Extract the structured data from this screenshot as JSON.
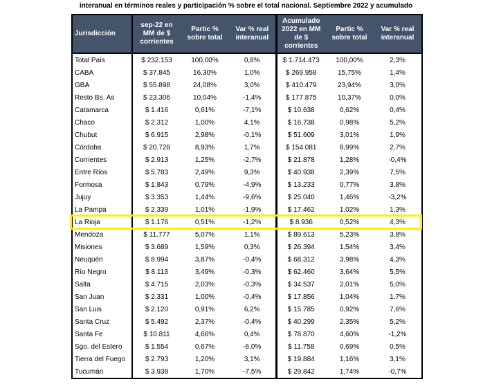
{
  "title": "interanual en términos reales y participación % sobre el total nacional. Septiembre 2022 y acumulado",
  "headers": [
    "Jurisdicción",
    "sep-22 en MM de $ corrientes",
    "Partic % sobre total",
    "Var % real interanual",
    "Acumulado 2022 en MM de $ corrientes",
    "Partic % sobre total",
    "Var % real interanual"
  ],
  "highlight_color": "#ffee00",
  "rows": [
    [
      "Total País",
      "$ 232.153",
      "100,00%",
      "0,8%",
      "$ 1.714.473",
      "100,00%",
      "2,3%"
    ],
    [
      "CABA",
      "$ 37.845",
      "16,30%",
      "1,0%",
      "$ 269.958",
      "15,75%",
      "1,4%"
    ],
    [
      "GBA",
      "$ 55.898",
      "24,08%",
      "3,0%",
      "$ 410.479",
      "23,94%",
      "3,0%"
    ],
    [
      "Resto Bs. As",
      "$ 23.306",
      "10,04%",
      "-1,4%",
      "$ 177.875",
      "10,37%",
      "0,0%"
    ],
    [
      "Catamarca",
      "$ 1.416",
      "0,61%",
      "-7,1%",
      "$ 10.638",
      "0,62%",
      "0,4%"
    ],
    [
      "Chaco",
      "$ 2.312",
      "1,00%",
      "4,1%",
      "$ 16.738",
      "0,98%",
      "5,2%"
    ],
    [
      "Chubut",
      "$ 6.915",
      "2,98%",
      "-0,1%",
      "$ 51.609",
      "3,01%",
      "1,9%"
    ],
    [
      "Córdoba",
      "$ 20.728",
      "8,93%",
      "1,7%",
      "$ 154.081",
      "8,99%",
      "2,7%"
    ],
    [
      "Corrientes",
      "$ 2.913",
      "1,25%",
      "-2,7%",
      "$ 21.878",
      "1,28%",
      "-0,4%"
    ],
    [
      "Entre Ríos",
      "$ 5.783",
      "2,49%",
      "9,3%",
      "$ 40.938",
      "2,39%",
      "7,5%"
    ],
    [
      "Formosa",
      "$ 1.843",
      "0,79%",
      "-4,9%",
      "$ 13.233",
      "0,77%",
      "3,8%"
    ],
    [
      "Jujuy",
      "$ 3.353",
      "1,44%",
      "-9,6%",
      "$ 25.040",
      "1,46%",
      "-3,2%"
    ],
    [
      "La Pampa",
      "$ 2.339",
      "1,01%",
      "-1,9%",
      "$ 17.462",
      "1,02%",
      "1,3%"
    ],
    [
      "La Rioja",
      "$ 1.176",
      "0,51%",
      "-1,2%",
      "$ 8.936",
      "0,52%",
      "4,3%"
    ],
    [
      "Mendoza",
      "$ 11.777",
      "5,07%",
      "1,1%",
      "$ 89.613",
      "5,23%",
      "3,8%"
    ],
    [
      "Misiones",
      "$ 3.689",
      "1,59%",
      "0,3%",
      "$ 26.394",
      "1,54%",
      "3,4%"
    ],
    [
      "Neuquén",
      "$ 8.994",
      "3,87%",
      "-0,4%",
      "$ 68.312",
      "3,98%",
      "4,3%"
    ],
    [
      "Río Negro",
      "$ 8.113",
      "3,49%",
      "-0,3%",
      "$ 62.460",
      "3,64%",
      "5,5%"
    ],
    [
      "Salta",
      "$ 4.715",
      "2,03%",
      "-0,3%",
      "$ 34.537",
      "2,01%",
      "5,0%"
    ],
    [
      "San Juan",
      "$ 2.331",
      "1,00%",
      "-0,4%",
      "$ 17.856",
      "1,04%",
      "1,7%"
    ],
    [
      "San Luis",
      "$ 2.120",
      "0,91%",
      "6,2%",
      "$ 15.785",
      "0,92%",
      "7,6%"
    ],
    [
      "Santa Cruz",
      "$ 5.492",
      "2,37%",
      "-0,4%",
      "$ 40.299",
      "2,35%",
      "5,2%"
    ],
    [
      "Santa Fe",
      "$ 10.811",
      "4,66%",
      "0,4%",
      "$ 78.870",
      "4,60%",
      "-1,2%"
    ],
    [
      "Sgo. del Estero",
      "$ 1.554",
      "0,67%",
      "-6,0%",
      "$ 11.758",
      "0,69%",
      "0,5%"
    ],
    [
      "Tierra del Fuego",
      "$ 2.793",
      "1,20%",
      "3,1%",
      "$ 19.884",
      "1,16%",
      "3,1%"
    ],
    [
      "Tucumán",
      "$ 3.938",
      "1,70%",
      "-7,5%",
      "$ 29.842",
      "1,74%",
      "-0,7%"
    ]
  ]
}
